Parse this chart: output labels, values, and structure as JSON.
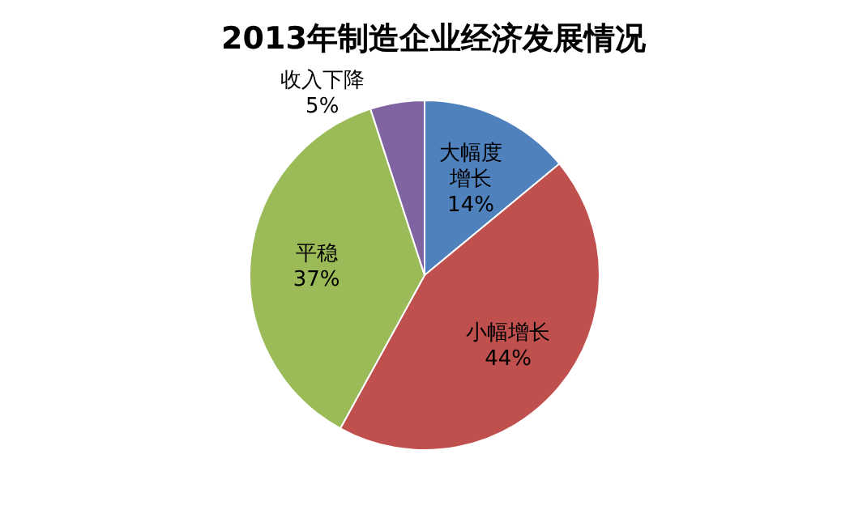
{
  "chart_data": {
    "type": "pie",
    "title": "2013年制造企业经济发展情况",
    "categories": [
      "大幅度增长",
      "小幅增长",
      "平稳",
      "收入下降"
    ],
    "values": [
      14,
      44,
      37,
      5
    ],
    "value_labels": [
      "14%",
      "44%",
      "37%",
      "5%"
    ],
    "colors": [
      "#4f81bd",
      "#c0504d",
      "#9bbb59",
      "#8064a2"
    ]
  }
}
